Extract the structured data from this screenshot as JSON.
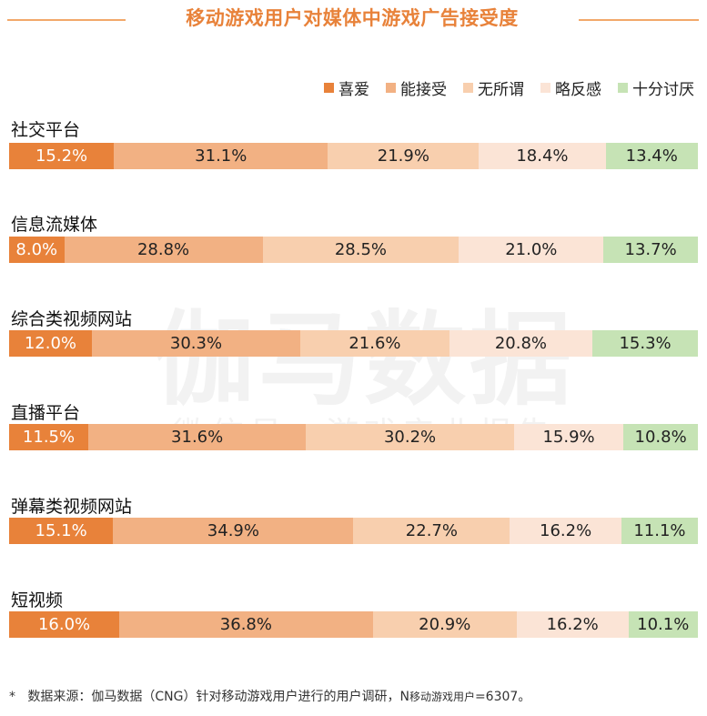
{
  "chart_data": {
    "type": "bar",
    "orientation": "horizontal",
    "stacked": true,
    "title": "移动游戏用户对媒体中游戏广告接受度",
    "categories": [
      "社交平台",
      "信息流媒体",
      "综合类视频网站",
      "直播平台",
      "弹幕类视频网站",
      "短视频"
    ],
    "series": [
      {
        "name": "喜爱",
        "color": "#e8823a",
        "values": [
          15.2,
          8.0,
          12.0,
          11.5,
          15.1,
          16.0
        ]
      },
      {
        "name": "能接受",
        "color": "#f2b183",
        "values": [
          31.1,
          28.8,
          30.3,
          31.6,
          34.9,
          36.8
        ]
      },
      {
        "name": "无所谓",
        "color": "#f8cfae",
        "values": [
          21.9,
          28.5,
          21.6,
          30.2,
          22.7,
          20.9
        ]
      },
      {
        "name": "略反感",
        "color": "#fbe4d6",
        "values": [
          18.4,
          21.0,
          20.8,
          15.9,
          16.2,
          16.2
        ]
      },
      {
        "name": "十分讨厌",
        "color": "#c6e3b5",
        "values": [
          13.4,
          13.7,
          15.3,
          10.8,
          11.1,
          10.1
        ]
      }
    ],
    "unit": "%",
    "legend_position": "top-right"
  },
  "watermark": {
    "main": "伽马数据",
    "sub": "微信号：游戏产业报告"
  },
  "footnote": {
    "star": "*",
    "text": "数据来源：伽马数据（CNG）针对移动游戏用户进行的用户调研，N",
    "sub": "移动游戏用户",
    "tail": "=6307。"
  }
}
